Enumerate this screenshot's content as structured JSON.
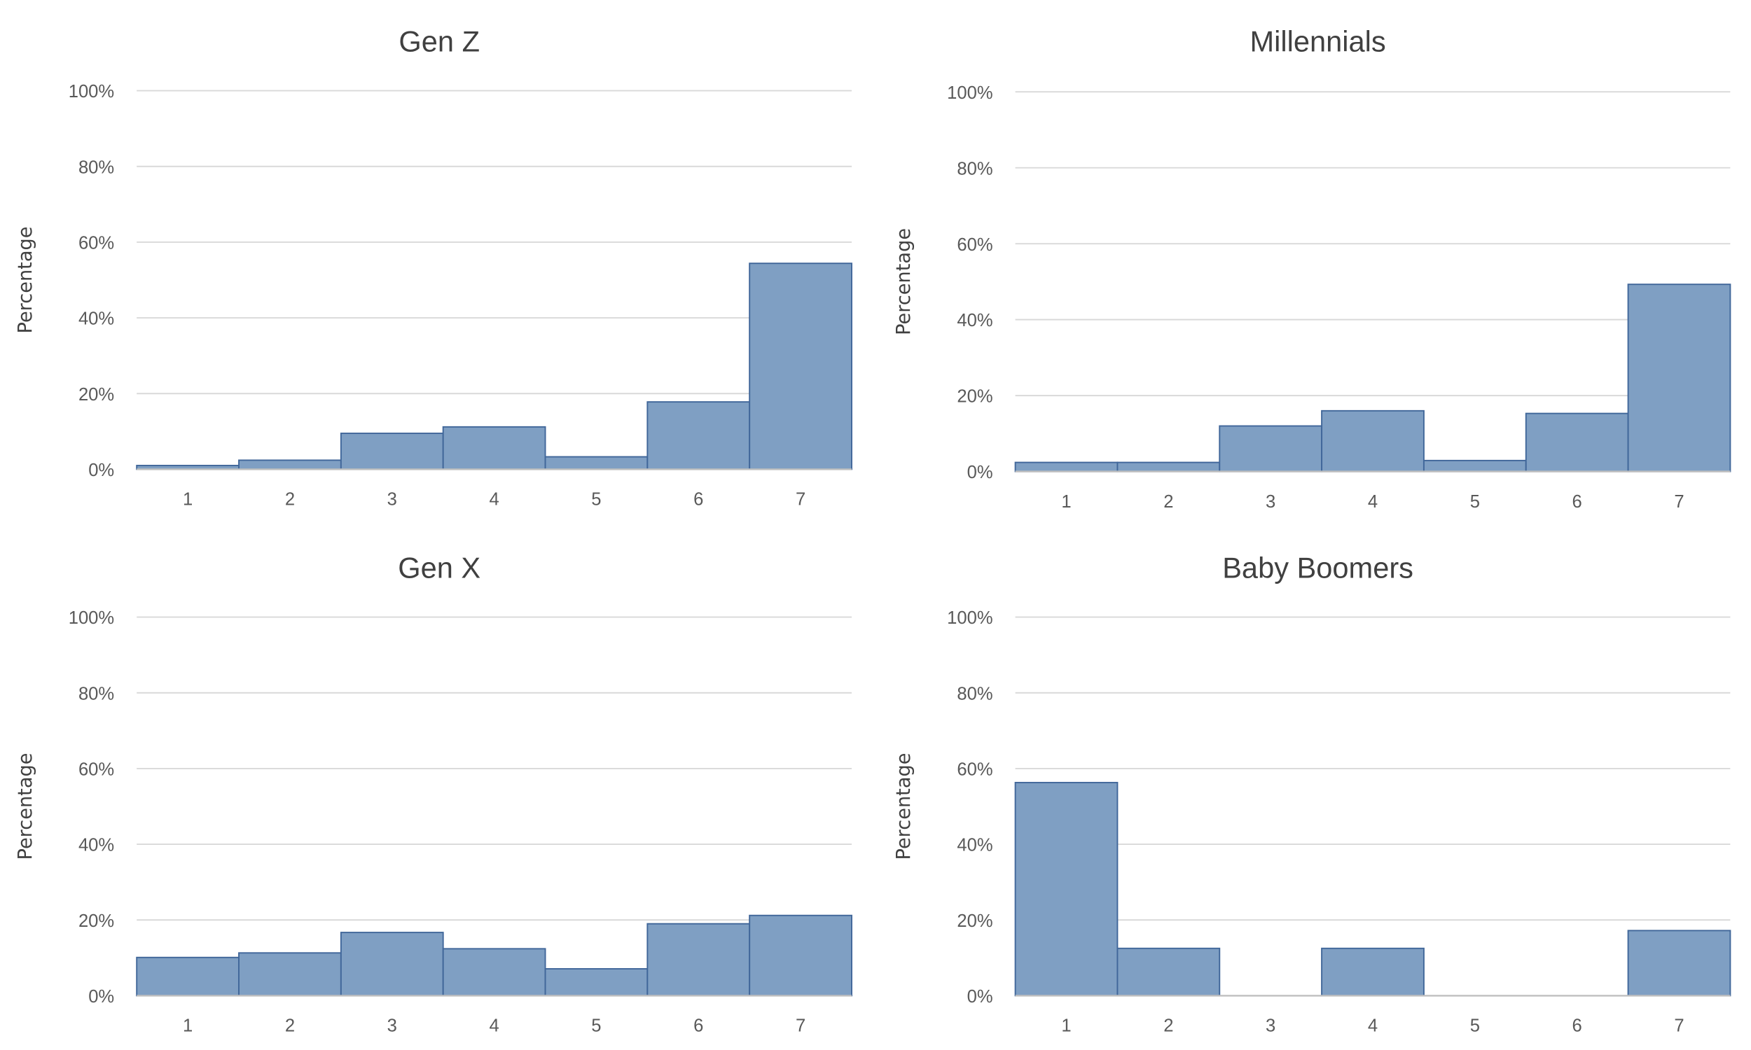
{
  "colors": {
    "bar_fill": "#7f9fc3",
    "bar_stroke": "#41679a",
    "grid": "#d9d9d9",
    "text": "#404040"
  },
  "chart_data": [
    {
      "type": "bar",
      "title": "Gen Z",
      "xlabel": "",
      "ylabel": "Percentage",
      "categories": [
        "1",
        "2",
        "3",
        "4",
        "5",
        "6",
        "7"
      ],
      "values": [
        1.0,
        2.4,
        9.5,
        11.2,
        3.3,
        17.8,
        54.4
      ],
      "ylim": [
        0,
        100
      ],
      "yticks": [
        "0%",
        "20%",
        "40%",
        "60%",
        "80%",
        "100%"
      ],
      "grid": true
    },
    {
      "type": "bar",
      "title": "Millennials",
      "xlabel": "",
      "ylabel": "Percentage",
      "categories": [
        "1",
        "2",
        "3",
        "4",
        "5",
        "6",
        "7"
      ],
      "values": [
        2.4,
        2.4,
        12.0,
        16.0,
        2.9,
        15.3,
        49.3
      ],
      "ylim": [
        0,
        100
      ],
      "yticks": [
        "0%",
        "20%",
        "40%",
        "60%",
        "80%",
        "100%"
      ],
      "grid": true
    },
    {
      "type": "bar",
      "title": "Gen X",
      "xlabel": "",
      "ylabel": "Percentage",
      "categories": [
        "1",
        "2",
        "3",
        "4",
        "5",
        "6",
        "7"
      ],
      "values": [
        10.1,
        11.3,
        16.7,
        12.4,
        7.1,
        19.0,
        21.2
      ],
      "ylim": [
        0,
        100
      ],
      "yticks": [
        "0%",
        "20%",
        "40%",
        "60%",
        "80%",
        "100%"
      ],
      "grid": true
    },
    {
      "type": "bar",
      "title": "Baby Boomers",
      "xlabel": "",
      "ylabel": "Percentage",
      "categories": [
        "1",
        "2",
        "3",
        "4",
        "5",
        "6",
        "7"
      ],
      "values": [
        56.3,
        12.5,
        0,
        12.5,
        0,
        0,
        17.2
      ],
      "ylim": [
        0,
        100
      ],
      "yticks": [
        "0%",
        "20%",
        "40%",
        "60%",
        "80%",
        "100%"
      ],
      "grid": true
    }
  ]
}
